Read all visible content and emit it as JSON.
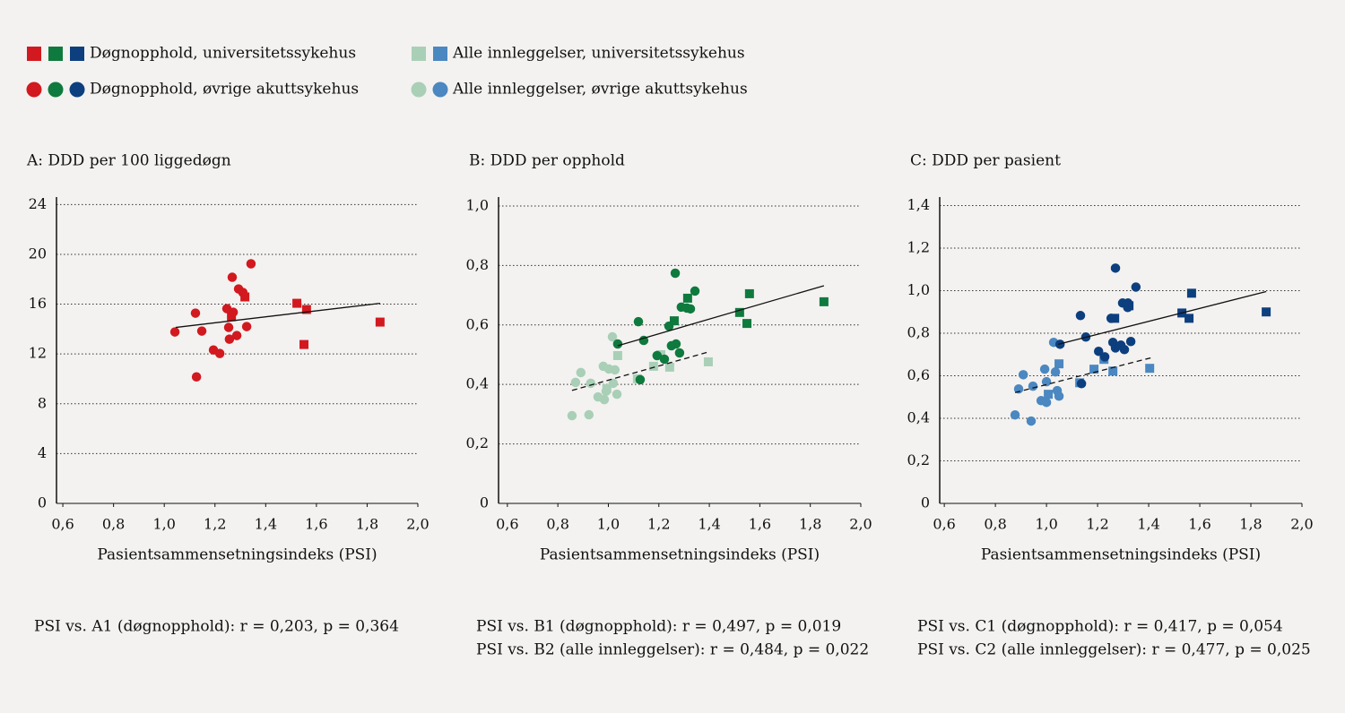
{
  "legend": [
    {
      "label": "Døgnopphold,  universitetssykehus",
      "shape": "square",
      "colors": [
        "#d2191f",
        "#0f7a3e",
        "#0d3f7e"
      ]
    },
    {
      "label": "Døgnopphold, øvrige akuttsykehus",
      "shape": "circle",
      "colors": [
        "#d2191f",
        "#0f7a3e",
        "#0d3f7e"
      ]
    },
    {
      "label": "Alle innleggelser, universitetssykehus",
      "shape": "square",
      "colors": [
        "#a9cfb7",
        "#4b87c1"
      ]
    },
    {
      "label": "Alle innleggelser, øvrige akuttsykehus",
      "shape": "circle",
      "colors": [
        "#a9cfb7",
        "#4b87c1"
      ]
    }
  ],
  "chart_data": [
    {
      "type": "scatter",
      "title": "A: DDD per 100 liggedøgn",
      "x_label": "Pasientsammensetningsindeks (PSI)",
      "xlim": [
        0.575,
        2.0
      ],
      "ylim": [
        0,
        24.6
      ],
      "xticks": [
        {
          "value": 0.6,
          "label": "0,6"
        },
        {
          "value": 0.8,
          "label": "0,8"
        },
        {
          "value": 1.0,
          "label": "1,0"
        },
        {
          "value": 1.2,
          "label": "1,2"
        },
        {
          "value": 1.4,
          "label": "1,4"
        },
        {
          "value": 1.6,
          "label": "1,6"
        },
        {
          "value": 1.8,
          "label": "1,8"
        },
        {
          "value": 2.0,
          "label": "2,0"
        }
      ],
      "yticks": [
        0,
        4,
        8,
        12,
        16,
        20,
        24
      ],
      "series": [
        {
          "marker": "square",
          "color": "#d2191f",
          "x": [
            1.523,
            1.561,
            1.318,
            1.551,
            1.851,
            1.265
          ],
          "y": [
            16.07,
            15.57,
            16.58,
            12.76,
            14.56,
            14.99
          ]
        },
        {
          "marker": "circle",
          "color": "#d2191f",
          "x": [
            1.042,
            1.123,
            1.148,
            1.127,
            1.194,
            1.219,
            1.247,
            1.268,
            1.272,
            1.254,
            1.257,
            1.286,
            1.293,
            1.31,
            1.325,
            1.342
          ],
          "y": [
            13.77,
            15.28,
            13.84,
            10.16,
            12.32,
            12.04,
            15.64,
            18.16,
            15.35,
            14.13,
            13.19,
            13.48,
            17.22,
            16.94,
            14.2,
            19.24
          ]
        }
      ],
      "trend_lines": [
        {
          "dash": false,
          "x": [
            1.045,
            1.851
          ],
          "y": [
            14.13,
            16.07
          ]
        }
      ],
      "stats": [
        "PSI vs. A1 (døgnopphold): r = 0,203, p = 0,364"
      ]
    },
    {
      "type": "scatter",
      "title": "B: DDD per opphold",
      "x_label": "Pasientsammensetningsindeks (PSI)",
      "xlim": [
        0.565,
        2.0
      ],
      "ylim": [
        0,
        1.03
      ],
      "xticks": [
        {
          "value": 0.6,
          "label": "0,6"
        },
        {
          "value": 0.8,
          "label": "0,8"
        },
        {
          "value": 1.0,
          "label": "1,0"
        },
        {
          "value": 1.2,
          "label": "1,2"
        },
        {
          "value": 1.4,
          "label": "1,4"
        },
        {
          "value": 1.6,
          "label": "1,6"
        },
        {
          "value": 1.8,
          "label": "1,8"
        },
        {
          "value": 2.0,
          "label": "2,0"
        }
      ],
      "yticks": [
        0,
        {
          "value": 0.2,
          "label": "0,2"
        },
        {
          "value": 0.4,
          "label": "0,4"
        },
        {
          "value": 0.6,
          "label": "0,6"
        },
        {
          "value": 0.8,
          "label": "0,8"
        },
        {
          "value": 1.0,
          "label": "1,0"
        }
      ],
      "series": [
        {
          "marker": "square",
          "color": "#a9cfb7",
          "x": [
            1.037,
            1.179,
            1.208,
            1.243,
            1.396,
            0.994,
            1.115
          ],
          "y": [
            0.497,
            0.461,
            0.5,
            0.458,
            0.476,
            0.386,
            0.419
          ]
        },
        {
          "marker": "circle",
          "color": "#a9cfb7",
          "x": [
            0.856,
            0.87,
            0.891,
            0.923,
            0.93,
            0.959,
            0.98,
            0.984,
            0.991,
            1.002,
            1.016,
            1.019,
            1.026,
            1.034
          ],
          "y": [
            0.295,
            0.407,
            0.44,
            0.298,
            0.404,
            0.358,
            0.461,
            0.349,
            0.377,
            0.452,
            0.56,
            0.404,
            0.449,
            0.367
          ]
        },
        {
          "marker": "square",
          "color": "#0f7a3e",
          "x": [
            1.261,
            1.314,
            1.52,
            1.559,
            1.549,
            1.854
          ],
          "y": [
            0.614,
            0.69,
            0.642,
            0.705,
            0.605,
            0.678
          ]
        },
        {
          "marker": "circle",
          "color": "#0f7a3e",
          "x": [
            1.265,
            1.119,
            1.037,
            1.14,
            1.126,
            1.193,
            1.222,
            1.24,
            1.25,
            1.268,
            1.282,
            1.289,
            1.311,
            1.325,
            1.343
          ],
          "y": [
            0.774,
            0.611,
            0.536,
            0.548,
            0.416,
            0.497,
            0.485,
            0.596,
            0.53,
            0.536,
            0.506,
            0.66,
            0.657,
            0.654,
            0.714
          ]
        }
      ],
      "trend_lines": [
        {
          "dash": false,
          "x": [
            1.037,
            1.854
          ],
          "y": [
            0.53,
            0.732
          ]
        },
        {
          "dash": true,
          "x": [
            0.856,
            1.396
          ],
          "y": [
            0.38,
            0.509
          ]
        }
      ],
      "stats": [
        "PSI vs. B1 (døgnopphold): r = 0,497, p = 0,019",
        "PSI vs. B2 (alle innleggelser): r = 0,484, p = 0,022"
      ]
    },
    {
      "type": "scatter",
      "title": "C: DDD per pasient",
      "x_label": "Pasientsammensetningsindeks (PSI)",
      "xlim": [
        0.582,
        2.0
      ],
      "ylim": [
        0,
        1.44
      ],
      "xticks": [
        {
          "value": 0.6,
          "label": "0,6"
        },
        {
          "value": 0.8,
          "label": "0,8"
        },
        {
          "value": 1.0,
          "label": "1,0"
        },
        {
          "value": 1.2,
          "label": "1,2"
        },
        {
          "value": 1.4,
          "label": "1,4"
        },
        {
          "value": 1.6,
          "label": "1,6"
        },
        {
          "value": 1.8,
          "label": "1,8"
        },
        {
          "value": 2.0,
          "label": "2,0"
        }
      ],
      "yticks": [
        0,
        {
          "value": 0.2,
          "label": "0,2"
        },
        {
          "value": 0.4,
          "label": "0,4"
        },
        {
          "value": 0.6,
          "label": "0,6"
        },
        {
          "value": 0.8,
          "label": "0,8"
        },
        {
          "value": 1.0,
          "label": "1,0"
        },
        {
          "value": 1.2,
          "label": "1,2"
        },
        {
          "value": 1.4,
          "label": "1,4"
        }
      ],
      "series": [
        {
          "marker": "square",
          "color": "#4b87c1",
          "x": [
            1.049,
            1.186,
            1.225,
            1.26,
            1.404,
            1.007,
            1.13
          ],
          "y": [
            0.656,
            0.631,
            0.677,
            0.622,
            0.635,
            0.513,
            0.567
          ]
        },
        {
          "marker": "circle",
          "color": "#4b87c1",
          "x": [
            0.877,
            0.909,
            0.94,
            0.947,
            0.979,
            0.993,
            1.0,
            1.0,
            1.028,
            1.035,
            1.042,
            1.049,
            0.891
          ],
          "y": [
            0.416,
            0.605,
            0.387,
            0.551,
            0.483,
            0.631,
            0.475,
            0.572,
            0.757,
            0.618,
            0.53,
            0.504,
            0.538
          ]
        },
        {
          "marker": "square",
          "color": "#0d3f7e",
          "x": [
            1.267,
            1.323,
            1.53,
            1.568,
            1.558,
            1.86
          ],
          "y": [
            0.87,
            0.929,
            0.895,
            0.988,
            0.87,
            0.9
          ]
        },
        {
          "marker": "circle",
          "color": "#0d3f7e",
          "x": [
            1.27,
            1.35,
            1.298,
            1.253,
            1.154,
            1.133,
            1.053,
            1.204,
            1.228,
            1.26,
            1.27,
            1.291,
            1.305,
            1.319,
            1.33,
            1.137,
            1.318
          ],
          "y": [
            1.106,
            1.017,
            0.942,
            0.87,
            0.782,
            0.883,
            0.748,
            0.715,
            0.689,
            0.757,
            0.731,
            0.744,
            0.723,
            0.942,
            0.761,
            0.563,
            0.921
          ]
        }
      ],
      "trend_lines": [
        {
          "dash": false,
          "x": [
            1.046,
            1.86
          ],
          "y": [
            0.748,
            0.996
          ]
        },
        {
          "dash": true,
          "x": [
            0.877,
            1.411
          ],
          "y": [
            0.521,
            0.685
          ]
        }
      ],
      "stats": [
        "PSI vs. C1 (døgnopphold): r = 0,417, p = 0,054",
        "PSI vs. C2 (alle innleggelser): r = 0,477, p = 0,025"
      ]
    }
  ]
}
